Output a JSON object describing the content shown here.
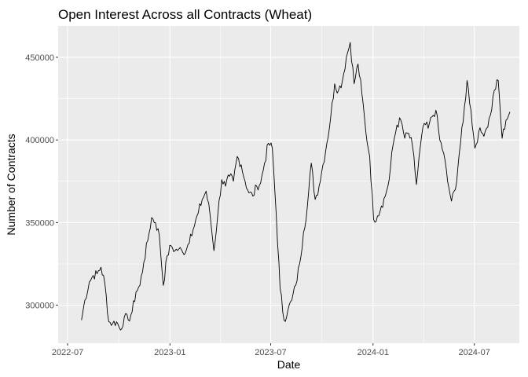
{
  "chart_data": {
    "type": "line",
    "title": "Open Interest Across all Contracts (Wheat)",
    "xlabel": "Date",
    "ylabel": "Number of Contracts",
    "x_ticks": [
      "2022-07",
      "2023-01",
      "2023-07",
      "2024-01",
      "2024-07"
    ],
    "y_ticks": [
      "300000",
      "350000",
      "400000",
      "450000"
    ],
    "xlim": [
      "2022-06-14",
      "2024-09-20"
    ],
    "ylim": [
      277000,
      469000
    ],
    "grid": true,
    "series": [
      {
        "values": [
          [
            "2022-07-26",
            291000
          ],
          [
            "2022-08-01",
            303000
          ],
          [
            "2022-08-09",
            314000
          ],
          [
            "2022-08-16",
            318000
          ],
          [
            "2022-08-23",
            319000
          ],
          [
            "2022-08-30",
            323000
          ],
          [
            "2022-09-06",
            313000
          ],
          [
            "2022-09-13",
            290000
          ],
          [
            "2022-09-20",
            289000
          ],
          [
            "2022-09-27",
            290000
          ],
          [
            "2022-10-04",
            285000
          ],
          [
            "2022-10-11",
            293000
          ],
          [
            "2022-10-18",
            291000
          ],
          [
            "2022-10-25",
            296000
          ],
          [
            "2022-11-01",
            308000
          ],
          [
            "2022-11-08",
            312000
          ],
          [
            "2022-11-15",
            326000
          ],
          [
            "2022-11-22",
            339000
          ],
          [
            "2022-11-29",
            353000
          ],
          [
            "2022-12-06",
            350000
          ],
          [
            "2022-12-13",
            342000
          ],
          [
            "2022-12-20",
            312000
          ],
          [
            "2022-12-27",
            330000
          ],
          [
            "2023-01-03",
            336000
          ],
          [
            "2023-01-10",
            333000
          ],
          [
            "2023-01-17",
            334000
          ],
          [
            "2023-01-24",
            332000
          ],
          [
            "2023-01-31",
            334000
          ],
          [
            "2023-02-07",
            343000
          ],
          [
            "2023-02-14",
            348000
          ],
          [
            "2023-02-21",
            356000
          ],
          [
            "2023-02-28",
            364000
          ],
          [
            "2023-03-07",
            369000
          ],
          [
            "2023-03-14",
            355000
          ],
          [
            "2023-03-21",
            333000
          ],
          [
            "2023-03-28",
            355000
          ],
          [
            "2023-04-04",
            376000
          ],
          [
            "2023-04-11",
            372000
          ],
          [
            "2023-04-18",
            378000
          ],
          [
            "2023-04-25",
            375000
          ],
          [
            "2023-05-02",
            390000
          ],
          [
            "2023-05-09",
            385000
          ],
          [
            "2023-05-16",
            375000
          ],
          [
            "2023-05-23",
            368000
          ],
          [
            "2023-05-30",
            366000
          ],
          [
            "2023-06-06",
            372000
          ],
          [
            "2023-06-13",
            374000
          ],
          [
            "2023-06-20",
            386000
          ],
          [
            "2023-06-27",
            398000
          ],
          [
            "2023-07-04",
            395000
          ],
          [
            "2023-07-11",
            355000
          ],
          [
            "2023-07-18",
            310000
          ],
          [
            "2023-07-25",
            291000
          ],
          [
            "2023-08-01",
            297000
          ],
          [
            "2023-08-08",
            303000
          ],
          [
            "2023-08-15",
            312000
          ],
          [
            "2023-08-22",
            325000
          ],
          [
            "2023-08-29",
            344000
          ],
          [
            "2023-09-05",
            360000
          ],
          [
            "2023-09-12",
            386000
          ],
          [
            "2023-09-19",
            364000
          ],
          [
            "2023-09-26",
            372000
          ],
          [
            "2023-10-03",
            385000
          ],
          [
            "2023-10-10",
            398000
          ],
          [
            "2023-10-17",
            414000
          ],
          [
            "2023-10-24",
            434000
          ],
          [
            "2023-10-31",
            430000
          ],
          [
            "2023-11-07",
            436000
          ],
          [
            "2023-11-14",
            450000
          ],
          [
            "2023-11-21",
            459000
          ],
          [
            "2023-11-28",
            434000
          ],
          [
            "2023-12-05",
            446000
          ],
          [
            "2023-12-12",
            428000
          ],
          [
            "2023-12-19",
            405000
          ],
          [
            "2023-12-26",
            390000
          ],
          [
            "2024-01-02",
            352000
          ],
          [
            "2024-01-09",
            354000
          ],
          [
            "2024-01-16",
            360000
          ],
          [
            "2024-01-23",
            366000
          ],
          [
            "2024-01-30",
            376000
          ],
          [
            "2024-02-06",
            397000
          ],
          [
            "2024-02-13",
            409000
          ],
          [
            "2024-02-20",
            412000
          ],
          [
            "2024-02-27",
            401000
          ],
          [
            "2024-03-05",
            404000
          ],
          [
            "2024-03-12",
            396000
          ],
          [
            "2024-03-19",
            373000
          ],
          [
            "2024-03-26",
            396000
          ],
          [
            "2024-04-02",
            410000
          ],
          [
            "2024-04-09",
            407000
          ],
          [
            "2024-04-16",
            414000
          ],
          [
            "2024-04-23",
            418000
          ],
          [
            "2024-04-30",
            400000
          ],
          [
            "2024-05-07",
            392000
          ],
          [
            "2024-05-14",
            375000
          ],
          [
            "2024-05-21",
            363000
          ],
          [
            "2024-05-28",
            370000
          ],
          [
            "2024-06-04",
            392000
          ],
          [
            "2024-06-11",
            411000
          ],
          [
            "2024-06-18",
            436000
          ],
          [
            "2024-06-25",
            418000
          ],
          [
            "2024-07-02",
            395000
          ],
          [
            "2024-07-09",
            405000
          ],
          [
            "2024-07-16",
            404000
          ],
          [
            "2024-07-23",
            407000
          ],
          [
            "2024-07-30",
            415000
          ],
          [
            "2024-08-06",
            430000
          ],
          [
            "2024-08-13",
            436000
          ],
          [
            "2024-08-20",
            401000
          ],
          [
            "2024-08-27",
            412000
          ],
          [
            "2024-09-03",
            417000
          ]
        ]
      }
    ]
  }
}
